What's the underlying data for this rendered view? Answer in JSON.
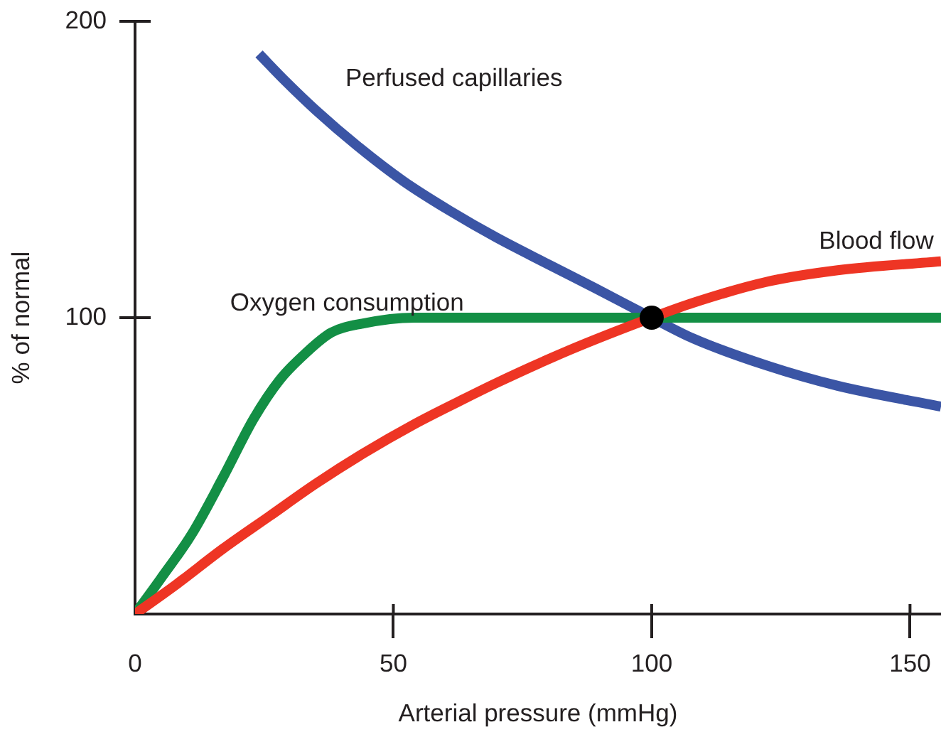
{
  "chart_data": {
    "type": "line",
    "xlabel": "Arterial pressure (mmHg)",
    "ylabel": "% of normal",
    "xlim": [
      0,
      156
    ],
    "xticks": [
      0,
      50,
      100,
      150
    ],
    "ylim": [
      0,
      200
    ],
    "yticks": [
      100,
      200
    ],
    "grid": false,
    "legend": false,
    "marker": "none",
    "line_style": "solid",
    "series": [
      {
        "name": "Perfused capillaries",
        "color": "#3b55a5",
        "x": [
          24,
          29,
          35,
          43,
          52,
          61,
          70,
          80,
          89,
          100,
          108,
          122,
          136,
          156
        ],
        "values": [
          189,
          180,
          170,
          158,
          146,
          136,
          127,
          118,
          110,
          100,
          93,
          84,
          77,
          70
        ]
      },
      {
        "name": "Oxygen consumption",
        "color": "#138f45",
        "x": [
          0,
          5,
          11,
          17,
          23,
          28,
          33,
          38,
          44,
          54,
          100,
          156
        ],
        "values": [
          0,
          12,
          27,
          46,
          66,
          79,
          88,
          95,
          98,
          100,
          100,
          100
        ]
      },
      {
        "name": "Blood flow",
        "color": "#ee3524",
        "x": [
          0,
          8,
          17,
          26,
          35,
          44,
          54,
          63,
          70,
          84,
          100,
          108,
          122,
          136,
          156
        ],
        "values": [
          0,
          10,
          22,
          33,
          44,
          54,
          64,
          72,
          78,
          89,
          100,
          105,
          112,
          116,
          119
        ]
      },
      {
        "type": "scatter",
        "color": "#000000",
        "marker": "circle",
        "x": [
          100
        ],
        "values": [
          100
        ]
      }
    ]
  }
}
